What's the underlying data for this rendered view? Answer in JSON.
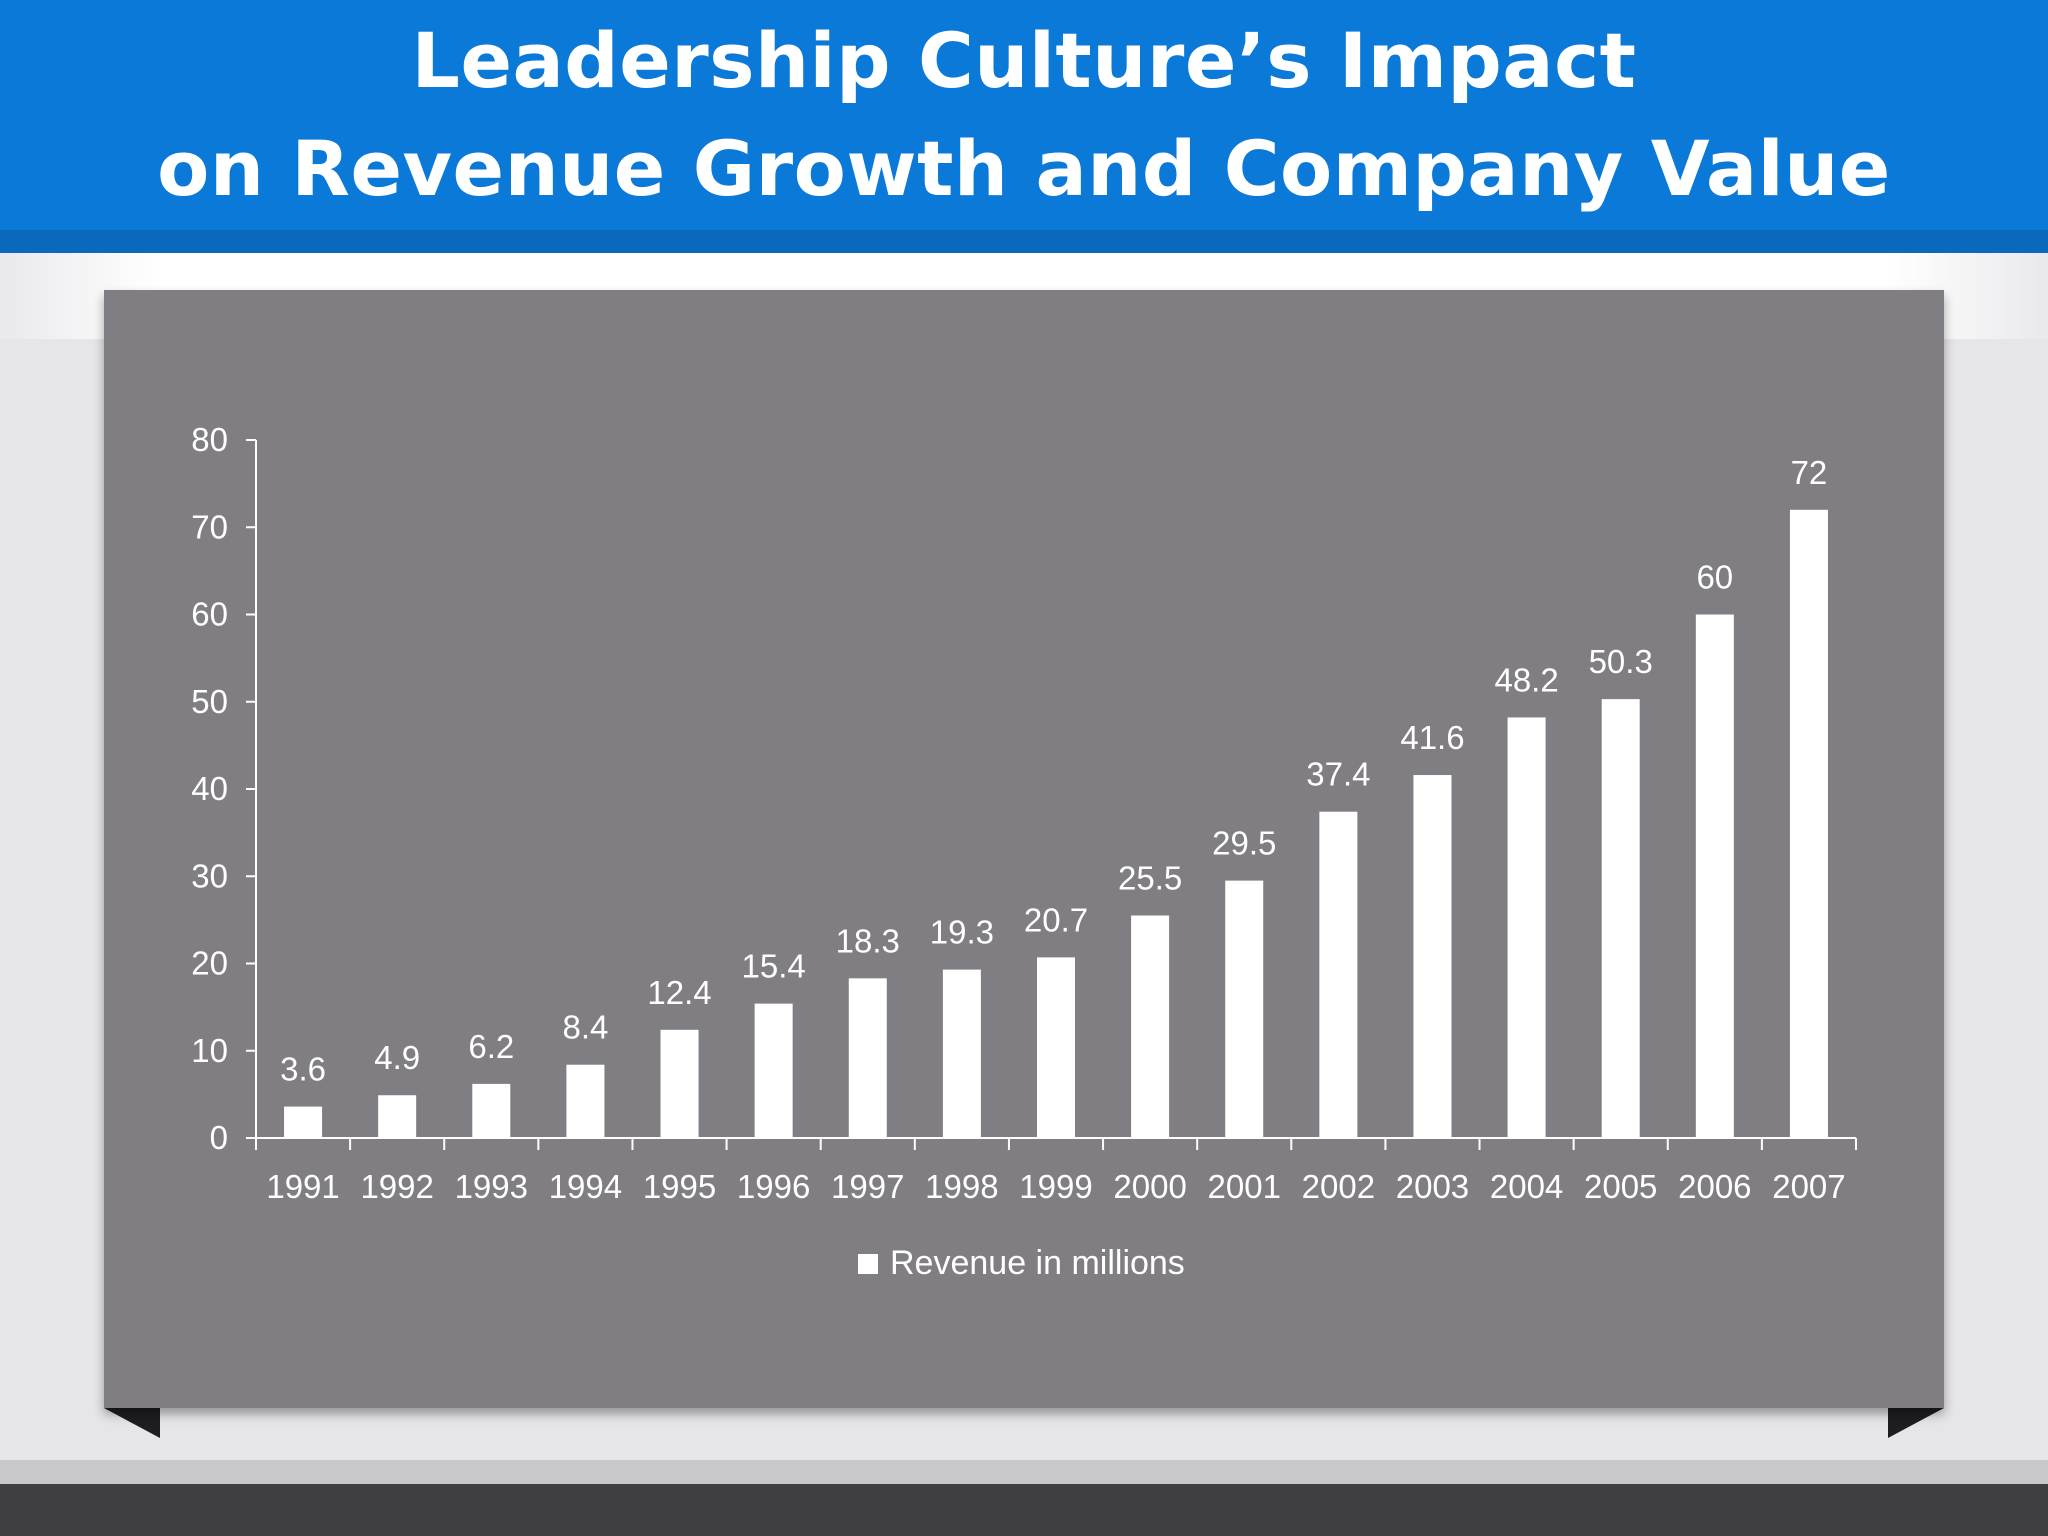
{
  "slide": {
    "title_line_1": "Leadership Culture’s Impact",
    "title_line_2": "on Revenue Growth and Company Value"
  },
  "colors": {
    "title_bar": "#0b79d8",
    "chart_panel": "#807e83",
    "bars": "#ffffff",
    "footer": "#3f3e42"
  },
  "chart_data": {
    "type": "bar",
    "title": "",
    "xlabel": "",
    "ylabel": "",
    "categories": [
      "1991",
      "1992",
      "1993",
      "1994",
      "1995",
      "1996",
      "1997",
      "1998",
      "1999",
      "2000",
      "2001",
      "2002",
      "2003",
      "2004",
      "2005",
      "2006",
      "2007"
    ],
    "series": [
      {
        "name": "Revenue in millions",
        "values": [
          3.6,
          4.9,
          6.2,
          8.4,
          12.4,
          15.4,
          18.3,
          19.3,
          20.7,
          25.5,
          29.5,
          37.4,
          41.6,
          48.2,
          50.3,
          60,
          72
        ],
        "labels": [
          "3.6",
          "4.9",
          "6.2",
          "8.4",
          "12.4",
          "15.4",
          "18.3",
          "19.3",
          "20.7",
          "25.5",
          "29.5",
          "37.4",
          "41.6",
          "48.2",
          "50.3",
          "60",
          "72"
        ]
      }
    ],
    "ylim": [
      0,
      80
    ],
    "yticks": [
      "0",
      "10",
      "20",
      "30",
      "40",
      "50",
      "60",
      "70",
      "80"
    ],
    "grid": false,
    "legend": "bottom"
  }
}
